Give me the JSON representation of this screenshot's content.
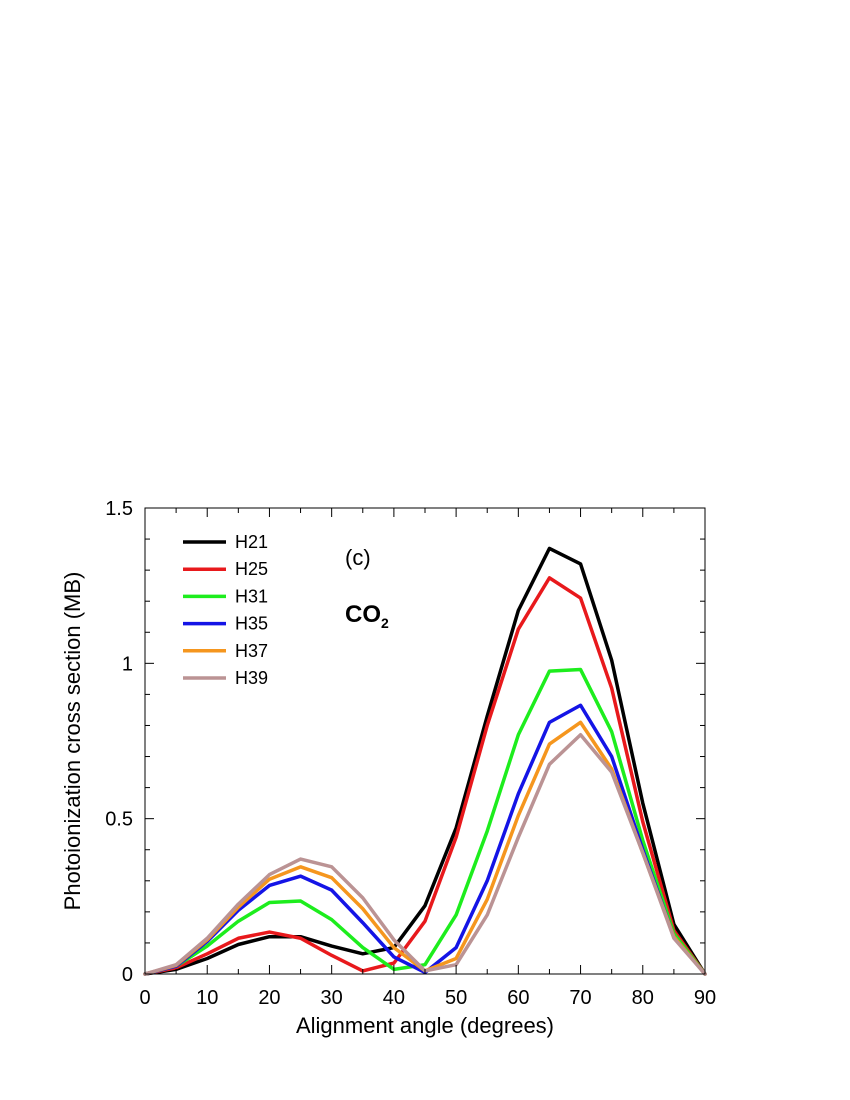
{
  "chart_data": {
    "type": "line",
    "xlabel": "Alignment angle (degrees)",
    "ylabel": "Photoionization cross section (MB)",
    "xlim": [
      0,
      90
    ],
    "ylim": [
      0,
      1.5
    ],
    "xticks": [
      0,
      10,
      20,
      30,
      40,
      50,
      60,
      70,
      80,
      90
    ],
    "yticks": [
      0,
      0.5,
      1,
      1.5
    ],
    "ytick_labels": [
      "0",
      "0.5",
      "1",
      "1.5"
    ],
    "grid": false,
    "legend_position": "top-left",
    "annotations": {
      "panel": "(c)",
      "molecule_main": "CO",
      "molecule_sub": "2"
    },
    "x": [
      0,
      5,
      10,
      15,
      20,
      25,
      30,
      35,
      40,
      45,
      50,
      55,
      60,
      65,
      70,
      75,
      80,
      85,
      90
    ],
    "series": [
      {
        "name": "H21",
        "color": "#000000",
        "values": [
          0,
          0.015,
          0.05,
          0.095,
          0.12,
          0.12,
          0.09,
          0.065,
          0.085,
          0.22,
          0.47,
          0.83,
          1.17,
          1.37,
          1.32,
          1.01,
          0.55,
          0.16,
          0
        ]
      },
      {
        "name": "H25",
        "color": "#e8191c",
        "values": [
          0,
          0.02,
          0.065,
          0.115,
          0.135,
          0.115,
          0.06,
          0.01,
          0.035,
          0.17,
          0.44,
          0.8,
          1.11,
          1.275,
          1.21,
          0.92,
          0.49,
          0.14,
          0
        ]
      },
      {
        "name": "H31",
        "color": "#1ded1d",
        "values": [
          0,
          0.025,
          0.09,
          0.17,
          0.23,
          0.235,
          0.175,
          0.085,
          0.015,
          0.03,
          0.19,
          0.46,
          0.77,
          0.975,
          0.98,
          0.78,
          0.43,
          0.13,
          0
        ]
      },
      {
        "name": "H35",
        "color": "#1414e6",
        "values": [
          0,
          0.025,
          0.105,
          0.205,
          0.285,
          0.315,
          0.27,
          0.165,
          0.055,
          0.005,
          0.085,
          0.3,
          0.58,
          0.81,
          0.865,
          0.7,
          0.4,
          0.12,
          0
        ]
      },
      {
        "name": "H37",
        "color": "#f5961e",
        "values": [
          0,
          0.028,
          0.11,
          0.215,
          0.305,
          0.345,
          0.31,
          0.21,
          0.085,
          0.01,
          0.05,
          0.24,
          0.51,
          0.74,
          0.81,
          0.66,
          0.39,
          0.12,
          0
        ]
      },
      {
        "name": "H39",
        "color": "#bb9394",
        "values": [
          0,
          0.03,
          0.115,
          0.225,
          0.32,
          0.37,
          0.345,
          0.245,
          0.11,
          0.01,
          0.03,
          0.19,
          0.44,
          0.675,
          0.77,
          0.65,
          0.39,
          0.115,
          0
        ]
      }
    ]
  }
}
